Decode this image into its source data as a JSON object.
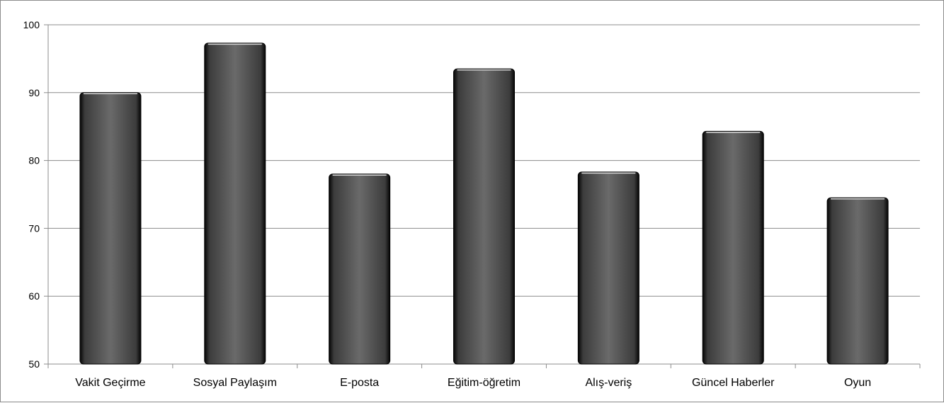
{
  "chart_data": {
    "type": "bar",
    "categories": [
      "Vakit Geçirme",
      "Sosyal Paylaşım",
      "E-posta",
      "Eğitim-öğretim",
      "Alış-veriş",
      "Güncel Haberler",
      "Oyun"
    ],
    "values": [
      90,
      97.3,
      78,
      93.5,
      78.3,
      84.3,
      74.5
    ],
    "ylim": [
      50,
      100
    ],
    "yticks": [
      "50",
      "60",
      "70",
      "80",
      "90",
      "100"
    ],
    "grid": true,
    "colors": {
      "bar": "#5f5f5f",
      "bar_edge": "#000000",
      "grid": "#8c8c8c"
    }
  }
}
